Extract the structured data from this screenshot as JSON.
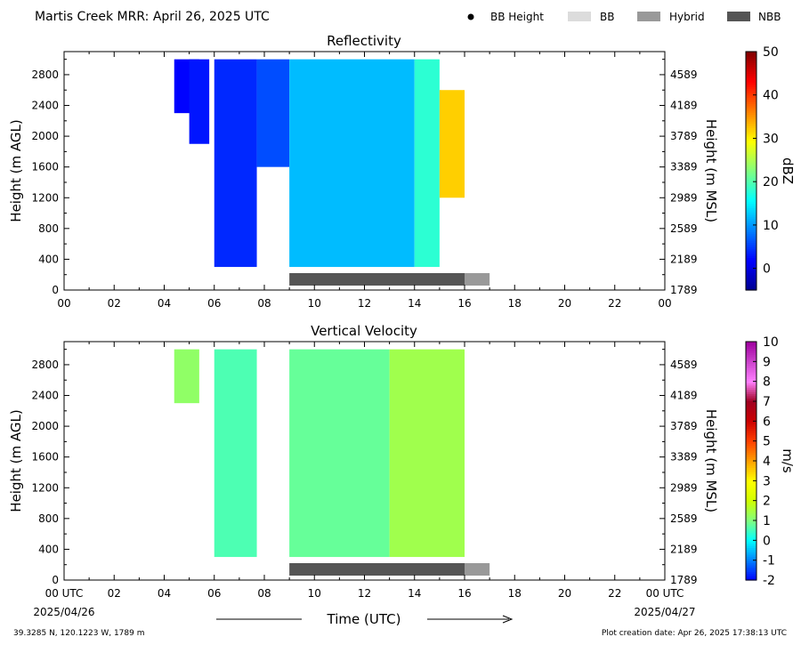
{
  "header": {
    "title": "Martis Creek MRR:  April 26, 2025 UTC",
    "legend": [
      {
        "label": "BB Height",
        "swatch": "dot",
        "color": "#000000"
      },
      {
        "label": "BB",
        "swatch": "bar",
        "color": "#dcdcdc"
      },
      {
        "label": "Hybrid",
        "swatch": "bar",
        "color": "#999999"
      },
      {
        "label": "NBB",
        "swatch": "bar",
        "color": "#555555"
      }
    ]
  },
  "footer": {
    "xlabel": "Time (UTC)",
    "start_date": "2025/04/26",
    "end_date": "2025/04/27",
    "location": "39.3285 N, 120.1223 W, 1789 m",
    "creation": "Plot creation date: Apr 26, 2025 17:38:13 UTC"
  },
  "chart_data": [
    {
      "type": "heatmap",
      "title": "Reflectivity",
      "ylabel": "Height (m AGL)",
      "ylabel_right": "Height (m MSL)",
      "colorbar_label": "dBZ",
      "xlim": [
        0,
        24
      ],
      "ylim": [
        0,
        3100
      ],
      "x_ticks": [
        "00",
        "02",
        "04",
        "06",
        "08",
        "10",
        "12",
        "14",
        "16",
        "18",
        "20",
        "22",
        "00"
      ],
      "y_ticks": [
        0,
        400,
        800,
        1200,
        1600,
        2000,
        2400,
        2800
      ],
      "y_ticks_right": [
        1789,
        2189,
        2589,
        2989,
        3389,
        3789,
        4189,
        4589
      ],
      "colorbar_range": [
        -5,
        50
      ],
      "colorbar_ticks": [
        0,
        10,
        20,
        30,
        40,
        50
      ],
      "bars": [
        {
          "kind": "NBB",
          "start": 9.0,
          "end": 16.0
        },
        {
          "kind": "Hybrid",
          "start": 16.0,
          "end": 17.0
        }
      ],
      "rain_periods": [
        {
          "start": 4.4,
          "end": 5.4,
          "bottom": 2300,
          "top": 3000,
          "value": 2
        },
        {
          "start": 5.0,
          "end": 5.8,
          "bottom": 1900,
          "top": 3000,
          "value": 3
        },
        {
          "start": 6.0,
          "end": 7.7,
          "bottom": 300,
          "top": 3000,
          "value": 4
        },
        {
          "start": 7.7,
          "end": 9.0,
          "bottom": 1600,
          "top": 3000,
          "value": 6
        },
        {
          "start": 9.0,
          "end": 14.0,
          "bottom": 300,
          "top": 3000,
          "value": 12
        },
        {
          "start": 14.0,
          "end": 15.0,
          "bottom": 300,
          "top": 3000,
          "value": 18
        },
        {
          "start": 15.0,
          "end": 16.0,
          "bottom": 1200,
          "top": 2600,
          "value": 32
        }
      ]
    },
    {
      "type": "heatmap",
      "title": "Vertical Velocity",
      "ylabel": "Height (m AGL)",
      "ylabel_right": "Height (m MSL)",
      "colorbar_label": "m/s",
      "xlim": [
        0,
        24
      ],
      "ylim": [
        0,
        3100
      ],
      "x_ticks": [
        "00 UTC",
        "02",
        "04",
        "06",
        "08",
        "10",
        "12",
        "14",
        "16",
        "18",
        "20",
        "22",
        "00 UTC"
      ],
      "y_ticks": [
        0,
        400,
        800,
        1200,
        1600,
        2000,
        2400,
        2800
      ],
      "y_ticks_right": [
        1789,
        2189,
        2589,
        2989,
        3389,
        3789,
        4189,
        4589
      ],
      "colorbar_range": [
        -2,
        10
      ],
      "colorbar_ticks": [
        "-2",
        "-1",
        "0",
        "1",
        "2",
        "3",
        "4",
        "5",
        "6",
        "7",
        "8",
        "9",
        "10"
      ],
      "bars": [
        {
          "kind": "NBB",
          "start": 9.0,
          "end": 16.0
        },
        {
          "kind": "Hybrid",
          "start": 16.0,
          "end": 17.0
        }
      ],
      "rain_periods": [
        {
          "start": 4.4,
          "end": 5.4,
          "bottom": 2300,
          "top": 3000,
          "value": 1.2
        },
        {
          "start": 6.0,
          "end": 7.7,
          "bottom": 300,
          "top": 3000,
          "value": 0.6
        },
        {
          "start": 9.0,
          "end": 13.0,
          "bottom": 300,
          "top": 3000,
          "value": 0.8
        },
        {
          "start": 13.0,
          "end": 16.0,
          "bottom": 300,
          "top": 3000,
          "value": 1.4
        }
      ]
    }
  ]
}
